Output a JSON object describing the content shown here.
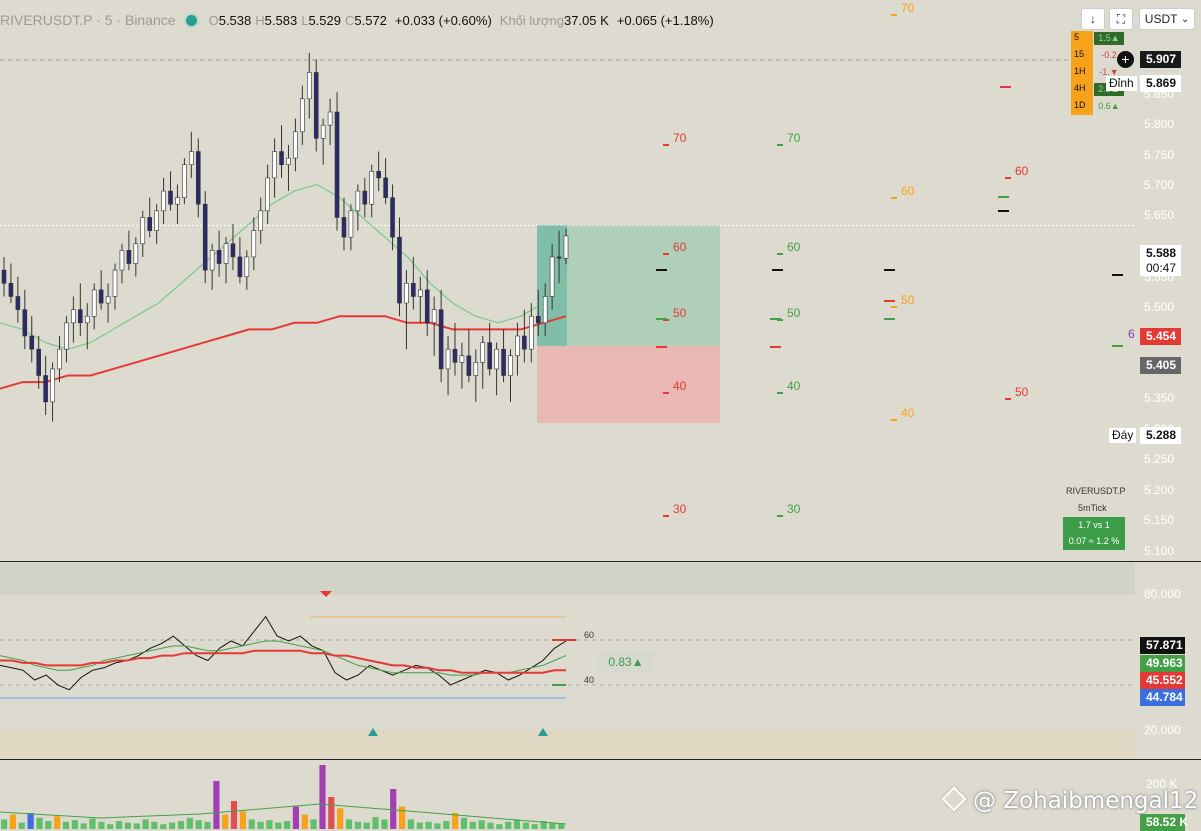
{
  "header": {
    "symbol": "RIVERUSDT.P · 5 · Binance",
    "open_label": "O",
    "open": "5.538",
    "high_label": "H",
    "high": "5.583",
    "low_label": "L",
    "low": "5.529",
    "close_label": "C",
    "close": "5.572",
    "change": "+0.033 (+0.60%)",
    "volume_label": "Khối lượng",
    "volume": "37.05 K",
    "volume_change": "+0.065 (+1.18%)"
  },
  "toolbar": {
    "down_icon": "↓",
    "fullscreen_icon": "⛶",
    "currency": "USDT",
    "currency_chevron": "⌄"
  },
  "timeframes": [
    {
      "tf": "5",
      "val": "1.5▲",
      "color": "#2f6b2b"
    },
    {
      "tf": "15",
      "val": "-0.2",
      "color": "#dddbd0"
    },
    {
      "tf": "1H",
      "val": "-1.▼",
      "color": "#dddbd0"
    },
    {
      "tf": "4H",
      "val": "2.5▲",
      "color": "#2f6b2b"
    },
    {
      "tf": "1D",
      "val": "0.6▲",
      "color": "#dddbd0"
    }
  ],
  "price_scale": [
    "5.850",
    "5.800",
    "5.750",
    "5.700",
    "5.650",
    "5.550",
    "5.500",
    "5.450",
    "5.350",
    "5.300",
    "5.250",
    "5.200",
    "5.150",
    "5.100"
  ],
  "price_tags": {
    "top": "5.907",
    "top_label": "Đỉnh",
    "top2": "5.869",
    "last": "5.588",
    "timer": "00:47",
    "red": "5.454",
    "gray": "5.405",
    "bottom_label": "Đáy",
    "bottom": "5.288"
  },
  "level_labels": {
    "red": [
      "70",
      "60",
      "50",
      "40",
      "30"
    ],
    "green": [
      "70",
      "60",
      "50",
      "40",
      "30"
    ],
    "orange": [
      "70",
      "60",
      "50",
      "40"
    ],
    "red2": [
      "60",
      "50"
    ],
    "purple": "6"
  },
  "info": {
    "symbol": "RIVERUSDT.P",
    "sub": "5mTick",
    "ratio": "1.7 vs 1",
    "pct": "0.07 ≈ 1.2 %"
  },
  "oscillator": {
    "scale": [
      "80.000",
      "20.000"
    ],
    "levels": [
      "60",
      "40"
    ],
    "badge": "0.83▲",
    "tags": [
      "57.871",
      "49.963",
      "45.552",
      "44.784"
    ],
    "tag_colors": [
      "#111111",
      "#43a047",
      "#e53935",
      "#3b6fe0"
    ]
  },
  "volume_pane": {
    "scale": "200 K",
    "tag": "58.52 K"
  },
  "watermark": "@ Zohaibmengal12",
  "chart_data": {
    "type": "candlestick",
    "title": "",
    "ylim": [
      5.08,
      5.93
    ],
    "last_price": 5.588,
    "candles": [
      [
        5.52,
        5.54,
        5.48,
        5.5
      ],
      [
        5.5,
        5.53,
        5.47,
        5.48
      ],
      [
        5.48,
        5.51,
        5.44,
        5.46
      ],
      [
        5.46,
        5.49,
        5.4,
        5.42
      ],
      [
        5.42,
        5.45,
        5.38,
        5.4
      ],
      [
        5.4,
        5.42,
        5.34,
        5.36
      ],
      [
        5.36,
        5.39,
        5.3,
        5.32
      ],
      [
        5.32,
        5.38,
        5.29,
        5.37
      ],
      [
        5.37,
        5.42,
        5.35,
        5.4
      ],
      [
        5.4,
        5.45,
        5.38,
        5.44
      ],
      [
        5.44,
        5.48,
        5.41,
        5.46
      ],
      [
        5.46,
        5.5,
        5.42,
        5.44
      ],
      [
        5.44,
        5.47,
        5.4,
        5.45
      ],
      [
        5.45,
        5.5,
        5.43,
        5.49
      ],
      [
        5.49,
        5.52,
        5.46,
        5.47
      ],
      [
        5.47,
        5.5,
        5.44,
        5.48
      ],
      [
        5.48,
        5.53,
        5.46,
        5.52
      ],
      [
        5.52,
        5.56,
        5.5,
        5.55
      ],
      [
        5.55,
        5.58,
        5.52,
        5.53
      ],
      [
        5.53,
        5.57,
        5.51,
        5.56
      ],
      [
        5.56,
        5.61,
        5.54,
        5.6
      ],
      [
        5.6,
        5.63,
        5.57,
        5.58
      ],
      [
        5.58,
        5.62,
        5.56,
        5.61
      ],
      [
        5.61,
        5.66,
        5.59,
        5.64
      ],
      [
        5.64,
        5.67,
        5.61,
        5.62
      ],
      [
        5.62,
        5.65,
        5.59,
        5.63
      ],
      [
        5.63,
        5.69,
        5.62,
        5.68
      ],
      [
        5.68,
        5.73,
        5.66,
        5.7
      ],
      [
        5.7,
        5.72,
        5.6,
        5.62
      ],
      [
        5.62,
        5.64,
        5.5,
        5.52
      ],
      [
        5.52,
        5.56,
        5.49,
        5.55
      ],
      [
        5.55,
        5.58,
        5.51,
        5.53
      ],
      [
        5.53,
        5.57,
        5.5,
        5.56
      ],
      [
        5.56,
        5.59,
        5.52,
        5.54
      ],
      [
        5.54,
        5.57,
        5.5,
        5.51
      ],
      [
        5.51,
        5.55,
        5.49,
        5.54
      ],
      [
        5.54,
        5.6,
        5.52,
        5.58
      ],
      [
        5.58,
        5.63,
        5.56,
        5.61
      ],
      [
        5.61,
        5.68,
        5.59,
        5.66
      ],
      [
        5.66,
        5.72,
        5.63,
        5.7
      ],
      [
        5.7,
        5.74,
        5.66,
        5.68
      ],
      [
        5.68,
        5.71,
        5.64,
        5.69
      ],
      [
        5.69,
        5.75,
        5.67,
        5.73
      ],
      [
        5.73,
        5.8,
        5.71,
        5.78
      ],
      [
        5.78,
        5.85,
        5.75,
        5.82
      ],
      [
        5.82,
        5.84,
        5.7,
        5.72
      ],
      [
        5.72,
        5.75,
        5.68,
        5.74
      ],
      [
        5.74,
        5.78,
        5.71,
        5.76
      ],
      [
        5.76,
        5.79,
        5.58,
        5.6
      ],
      [
        5.6,
        5.63,
        5.55,
        5.57
      ],
      [
        5.57,
        5.62,
        5.55,
        5.61
      ],
      [
        5.61,
        5.65,
        5.58,
        5.64
      ],
      [
        5.64,
        5.66,
        5.6,
        5.62
      ],
      [
        5.62,
        5.68,
        5.6,
        5.67
      ],
      [
        5.67,
        5.7,
        5.64,
        5.66
      ],
      [
        5.66,
        5.69,
        5.62,
        5.63
      ],
      [
        5.63,
        5.65,
        5.55,
        5.57
      ],
      [
        5.57,
        5.6,
        5.45,
        5.47
      ],
      [
        5.47,
        5.52,
        5.4,
        5.5
      ],
      [
        5.5,
        5.54,
        5.46,
        5.48
      ],
      [
        5.48,
        5.51,
        5.44,
        5.49
      ],
      [
        5.49,
        5.52,
        5.42,
        5.44
      ],
      [
        5.44,
        5.48,
        5.39,
        5.46
      ],
      [
        5.46,
        5.49,
        5.35,
        5.37
      ],
      [
        5.37,
        5.42,
        5.33,
        5.4
      ],
      [
        5.4,
        5.44,
        5.36,
        5.38
      ],
      [
        5.38,
        5.41,
        5.34,
        5.39
      ],
      [
        5.39,
        5.43,
        5.35,
        5.36
      ],
      [
        5.36,
        5.4,
        5.32,
        5.38
      ],
      [
        5.38,
        5.42,
        5.34,
        5.41
      ],
      [
        5.41,
        5.44,
        5.36,
        5.37
      ],
      [
        5.37,
        5.41,
        5.33,
        5.4
      ],
      [
        5.4,
        5.43,
        5.35,
        5.36
      ],
      [
        5.36,
        5.4,
        5.32,
        5.39
      ],
      [
        5.39,
        5.44,
        5.36,
        5.42
      ],
      [
        5.42,
        5.46,
        5.38,
        5.4
      ],
      [
        5.4,
        5.47,
        5.38,
        5.45
      ],
      [
        5.45,
        5.49,
        5.42,
        5.44
      ],
      [
        5.44,
        5.5,
        5.42,
        5.48
      ],
      [
        5.48,
        5.56,
        5.46,
        5.54
      ],
      [
        5.54,
        5.58,
        5.5,
        5.538
      ],
      [
        5.538,
        5.583,
        5.529,
        5.572
      ]
    ],
    "ma_slow": [
      5.34,
      5.35,
      5.35,
      5.36,
      5.36,
      5.37,
      5.38,
      5.39,
      5.4,
      5.41,
      5.42,
      5.43,
      5.43,
      5.44,
      5.44,
      5.45,
      5.45,
      5.45,
      5.44,
      5.44,
      5.43,
      5.43,
      5.43,
      5.43,
      5.44,
      5.45
    ],
    "ma_fast": [
      5.44,
      5.43,
      5.41,
      5.4,
      5.41,
      5.43,
      5.45,
      5.47,
      5.5,
      5.53,
      5.56,
      5.59,
      5.62,
      5.64,
      5.65,
      5.63,
      5.6,
      5.57,
      5.54,
      5.5,
      5.47,
      5.45,
      5.44,
      5.45,
      5.47,
      5.5
    ],
    "position": {
      "entry": 5.405,
      "target": 5.588,
      "stop": 5.288
    },
    "oscillator_ylim": [
      10,
      90
    ],
    "oscillator_series": [
      {
        "values": [
          48,
          47,
          46,
          42,
          44,
          40,
          38,
          43,
          46,
          47,
          49,
          50,
          52,
          55,
          57,
          60,
          56,
          52,
          50,
          55,
          58,
          56,
          62,
          68,
          60,
          58,
          60,
          56,
          54,
          45,
          42,
          44,
          48,
          46,
          44,
          46,
          48,
          47,
          44,
          40,
          42,
          44,
          46,
          45,
          42,
          44,
          47,
          50,
          55,
          58
        ]
      },
      {
        "values": [
          52,
          51,
          50,
          48,
          47,
          46,
          46,
          47,
          48,
          50,
          51,
          52,
          53,
          54,
          55,
          56,
          56,
          55,
          54,
          54,
          55,
          56,
          57,
          58,
          58,
          57,
          56,
          55,
          54,
          52,
          50,
          48,
          47,
          46,
          45,
          45,
          45,
          45,
          45,
          44,
          44,
          44,
          45,
          45,
          45,
          46,
          47,
          48,
          50,
          52
        ]
      },
      {
        "values": [
          50,
          50,
          49,
          49,
          48,
          48,
          48,
          48,
          49,
          49,
          50,
          50,
          51,
          51,
          52,
          52,
          53,
          53,
          53,
          53,
          53,
          53,
          54,
          54,
          54,
          54,
          54,
          53,
          53,
          52,
          52,
          51,
          50,
          49,
          48,
          48,
          47,
          47,
          46,
          46,
          45,
          45,
          45,
          45,
          45,
          45,
          45,
          45,
          46,
          46
        ]
      }
    ],
    "volume": [
      [
        12,
        "#5fbf6a"
      ],
      [
        18,
        "#f7a21b"
      ],
      [
        8,
        "#5fbf6a"
      ],
      [
        20,
        "#3b6fe0"
      ],
      [
        14,
        "#5fbf6a"
      ],
      [
        10,
        "#5fbf6a"
      ],
      [
        16,
        "#f7a21b"
      ],
      [
        9,
        "#5fbf6a"
      ],
      [
        11,
        "#5fbf6a"
      ],
      [
        7,
        "#5fbf6a"
      ],
      [
        13,
        "#5fbf6a"
      ],
      [
        9,
        "#5fbf6a"
      ],
      [
        6,
        "#5fbf6a"
      ],
      [
        10,
        "#5fbf6a"
      ],
      [
        8,
        "#5fbf6a"
      ],
      [
        7,
        "#5fbf6a"
      ],
      [
        12,
        "#5fbf6a"
      ],
      [
        9,
        "#5fbf6a"
      ],
      [
        6,
        "#5fbf6a"
      ],
      [
        8,
        "#5fbf6a"
      ],
      [
        10,
        "#5fbf6a"
      ],
      [
        14,
        "#5fbf6a"
      ],
      [
        11,
        "#5fbf6a"
      ],
      [
        9,
        "#5fbf6a"
      ],
      [
        60,
        "#a43fb3"
      ],
      [
        18,
        "#f7a21b"
      ],
      [
        35,
        "#e05050"
      ],
      [
        22,
        "#f7a21b"
      ],
      [
        12,
        "#5fbf6a"
      ],
      [
        9,
        "#5fbf6a"
      ],
      [
        11,
        "#5fbf6a"
      ],
      [
        8,
        "#5fbf6a"
      ],
      [
        10,
        "#5fbf6a"
      ],
      [
        28,
        "#a43fb3"
      ],
      [
        18,
        "#f7a21b"
      ],
      [
        12,
        "#5fbf6a"
      ],
      [
        80,
        "#a43fb3"
      ],
      [
        40,
        "#e05050"
      ],
      [
        26,
        "#f7a21b"
      ],
      [
        12,
        "#5fbf6a"
      ],
      [
        9,
        "#5fbf6a"
      ],
      [
        8,
        "#5fbf6a"
      ],
      [
        15,
        "#5fbf6a"
      ],
      [
        12,
        "#5fbf6a"
      ],
      [
        50,
        "#a43fb3"
      ],
      [
        28,
        "#f7a21b"
      ],
      [
        12,
        "#5fbf6a"
      ],
      [
        8,
        "#5fbf6a"
      ],
      [
        9,
        "#5fbf6a"
      ],
      [
        7,
        "#5fbf6a"
      ],
      [
        10,
        "#5fbf6a"
      ],
      [
        20,
        "#f7a21b"
      ],
      [
        14,
        "#5fbf6a"
      ],
      [
        9,
        "#5fbf6a"
      ],
      [
        11,
        "#5fbf6a"
      ],
      [
        8,
        "#5fbf6a"
      ],
      [
        6,
        "#5fbf6a"
      ],
      [
        9,
        "#5fbf6a"
      ],
      [
        12,
        "#5fbf6a"
      ],
      [
        8,
        "#5fbf6a"
      ],
      [
        6,
        "#5fbf6a"
      ],
      [
        10,
        "#5fbf6a"
      ],
      [
        8,
        "#5fbf6a"
      ],
      [
        7,
        "#5fbf6a"
      ]
    ]
  }
}
